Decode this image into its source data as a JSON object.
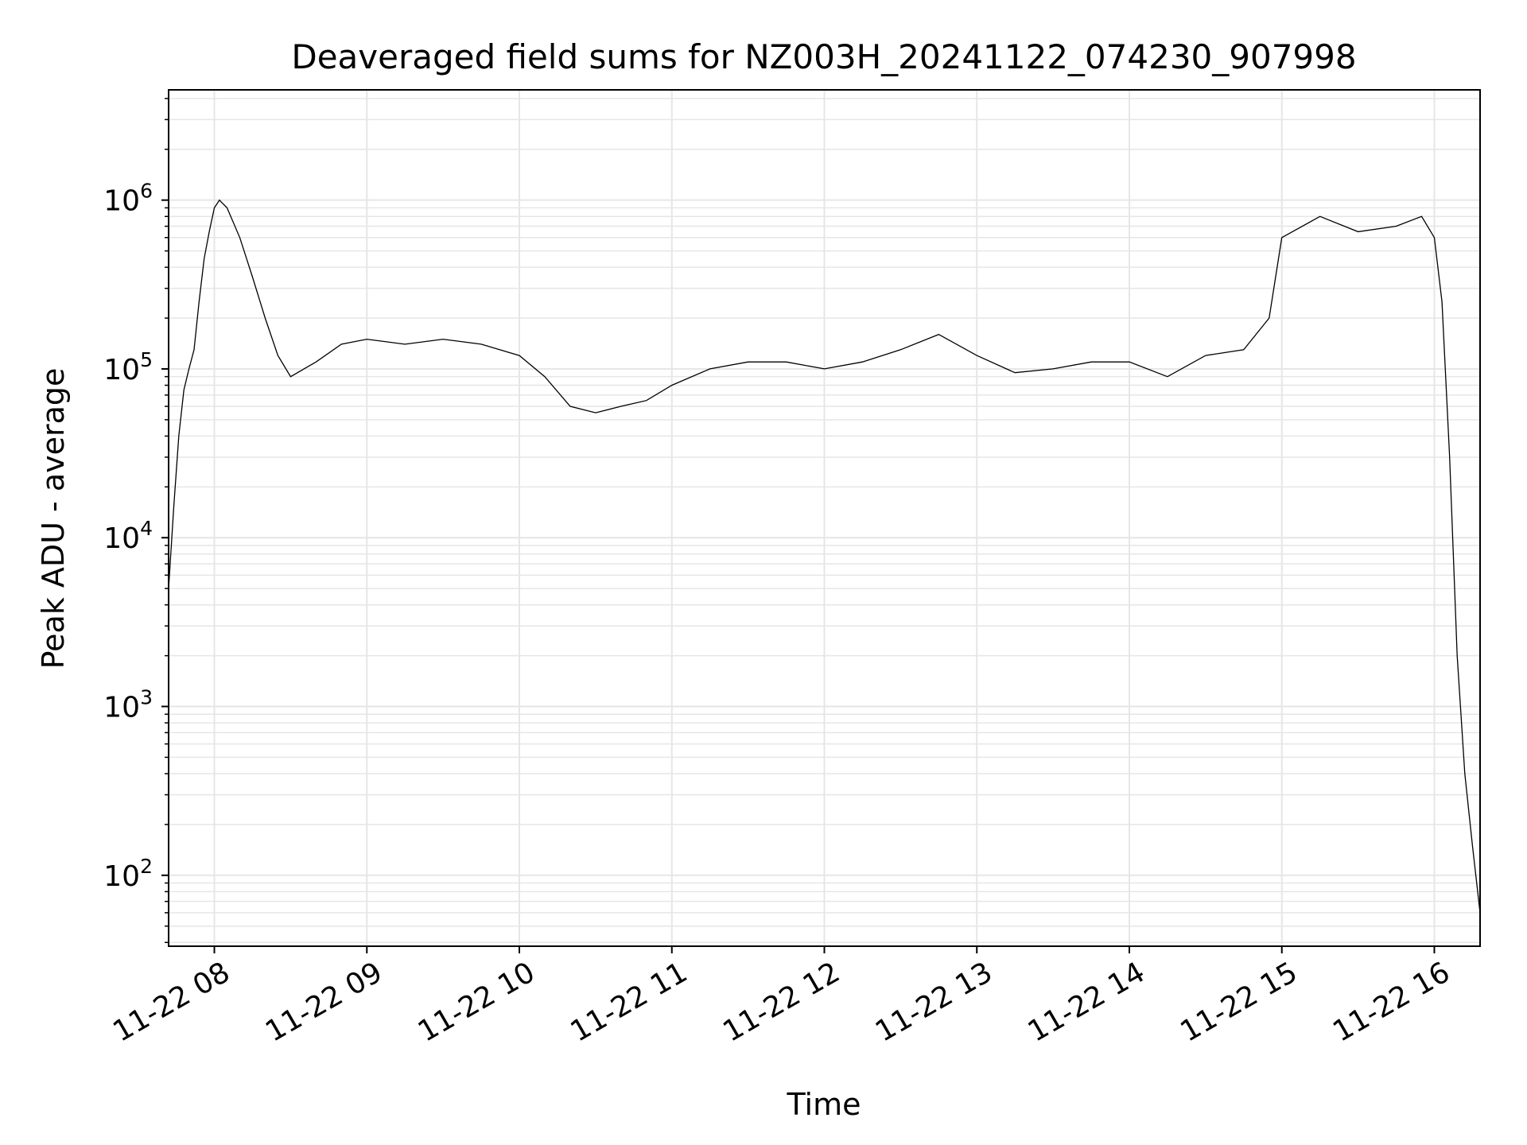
{
  "chart_data": {
    "type": "line",
    "title": "Deaveraged field sums for NZ003H_20241122_074230_907998",
    "xlabel": "Time",
    "ylabel": "Peak ADU - average",
    "yscale": "log",
    "ylim": [
      38,
      4500000
    ],
    "xlim": [
      "2024-11-22 07:42",
      "2024-11-22 16:18"
    ],
    "grid": true,
    "line_color": "#000000",
    "grid_color": "#e6e6e6",
    "x_ticks": [
      {
        "value": "2024-11-22 08:00",
        "label": "11-22 08"
      },
      {
        "value": "2024-11-22 09:00",
        "label": "11-22 09"
      },
      {
        "value": "2024-11-22 10:00",
        "label": "11-22 10"
      },
      {
        "value": "2024-11-22 11:00",
        "label": "11-22 11"
      },
      {
        "value": "2024-11-22 12:00",
        "label": "11-22 12"
      },
      {
        "value": "2024-11-22 13:00",
        "label": "11-22 13"
      },
      {
        "value": "2024-11-22 14:00",
        "label": "11-22 14"
      },
      {
        "value": "2024-11-22 15:00",
        "label": "11-22 15"
      },
      {
        "value": "2024-11-22 16:00",
        "label": "11-22 16"
      }
    ],
    "y_ticks": [
      {
        "value": 100,
        "base": "10",
        "exp": "2"
      },
      {
        "value": 1000,
        "base": "10",
        "exp": "3"
      },
      {
        "value": 10000,
        "base": "10",
        "exp": "4"
      },
      {
        "value": 100000,
        "base": "10",
        "exp": "5"
      },
      {
        "value": 1000000,
        "base": "10",
        "exp": "6"
      }
    ],
    "series": [
      {
        "x": [
          "2024-11-22 07:42",
          "2024-11-22 07:44",
          "2024-11-22 07:46",
          "2024-11-22 07:48",
          "2024-11-22 07:50",
          "2024-11-22 07:52",
          "2024-11-22 07:54",
          "2024-11-22 07:56",
          "2024-11-22 07:58",
          "2024-11-22 08:00",
          "2024-11-22 08:02",
          "2024-11-22 08:05",
          "2024-11-22 08:10",
          "2024-11-22 08:15",
          "2024-11-22 08:20",
          "2024-11-22 08:25",
          "2024-11-22 08:30",
          "2024-11-22 08:40",
          "2024-11-22 08:50",
          "2024-11-22 09:00",
          "2024-11-22 09:15",
          "2024-11-22 09:30",
          "2024-11-22 09:45",
          "2024-11-22 10:00",
          "2024-11-22 10:10",
          "2024-11-22 10:20",
          "2024-11-22 10:30",
          "2024-11-22 10:40",
          "2024-11-22 10:50",
          "2024-11-22 11:00",
          "2024-11-22 11:15",
          "2024-11-22 11:30",
          "2024-11-22 11:45",
          "2024-11-22 12:00",
          "2024-11-22 12:15",
          "2024-11-22 12:30",
          "2024-11-22 12:45",
          "2024-11-22 13:00",
          "2024-11-22 13:15",
          "2024-11-22 13:30",
          "2024-11-22 13:45",
          "2024-11-22 14:00",
          "2024-11-22 14:15",
          "2024-11-22 14:30",
          "2024-11-22 14:45",
          "2024-11-22 14:55",
          "2024-11-22 15:00",
          "2024-11-22 15:15",
          "2024-11-22 15:30",
          "2024-11-22 15:45",
          "2024-11-22 15:55",
          "2024-11-22 16:00",
          "2024-11-22 16:03",
          "2024-11-22 16:06",
          "2024-11-22 16:09",
          "2024-11-22 16:12",
          "2024-11-22 16:15",
          "2024-11-22 16:18"
        ],
        "y": [
          5000,
          15000,
          40000,
          75000,
          100000,
          130000,
          250000,
          450000,
          650000,
          900000,
          1000000,
          900000,
          600000,
          350000,
          200000,
          120000,
          90000,
          110000,
          140000,
          150000,
          140000,
          150000,
          140000,
          120000,
          90000,
          60000,
          55000,
          60000,
          65000,
          80000,
          100000,
          110000,
          110000,
          100000,
          110000,
          130000,
          160000,
          120000,
          95000,
          100000,
          110000,
          110000,
          90000,
          120000,
          130000,
          200000,
          600000,
          800000,
          650000,
          700000,
          800000,
          600000,
          250000,
          30000,
          2000,
          400,
          150,
          60
        ]
      }
    ]
  }
}
